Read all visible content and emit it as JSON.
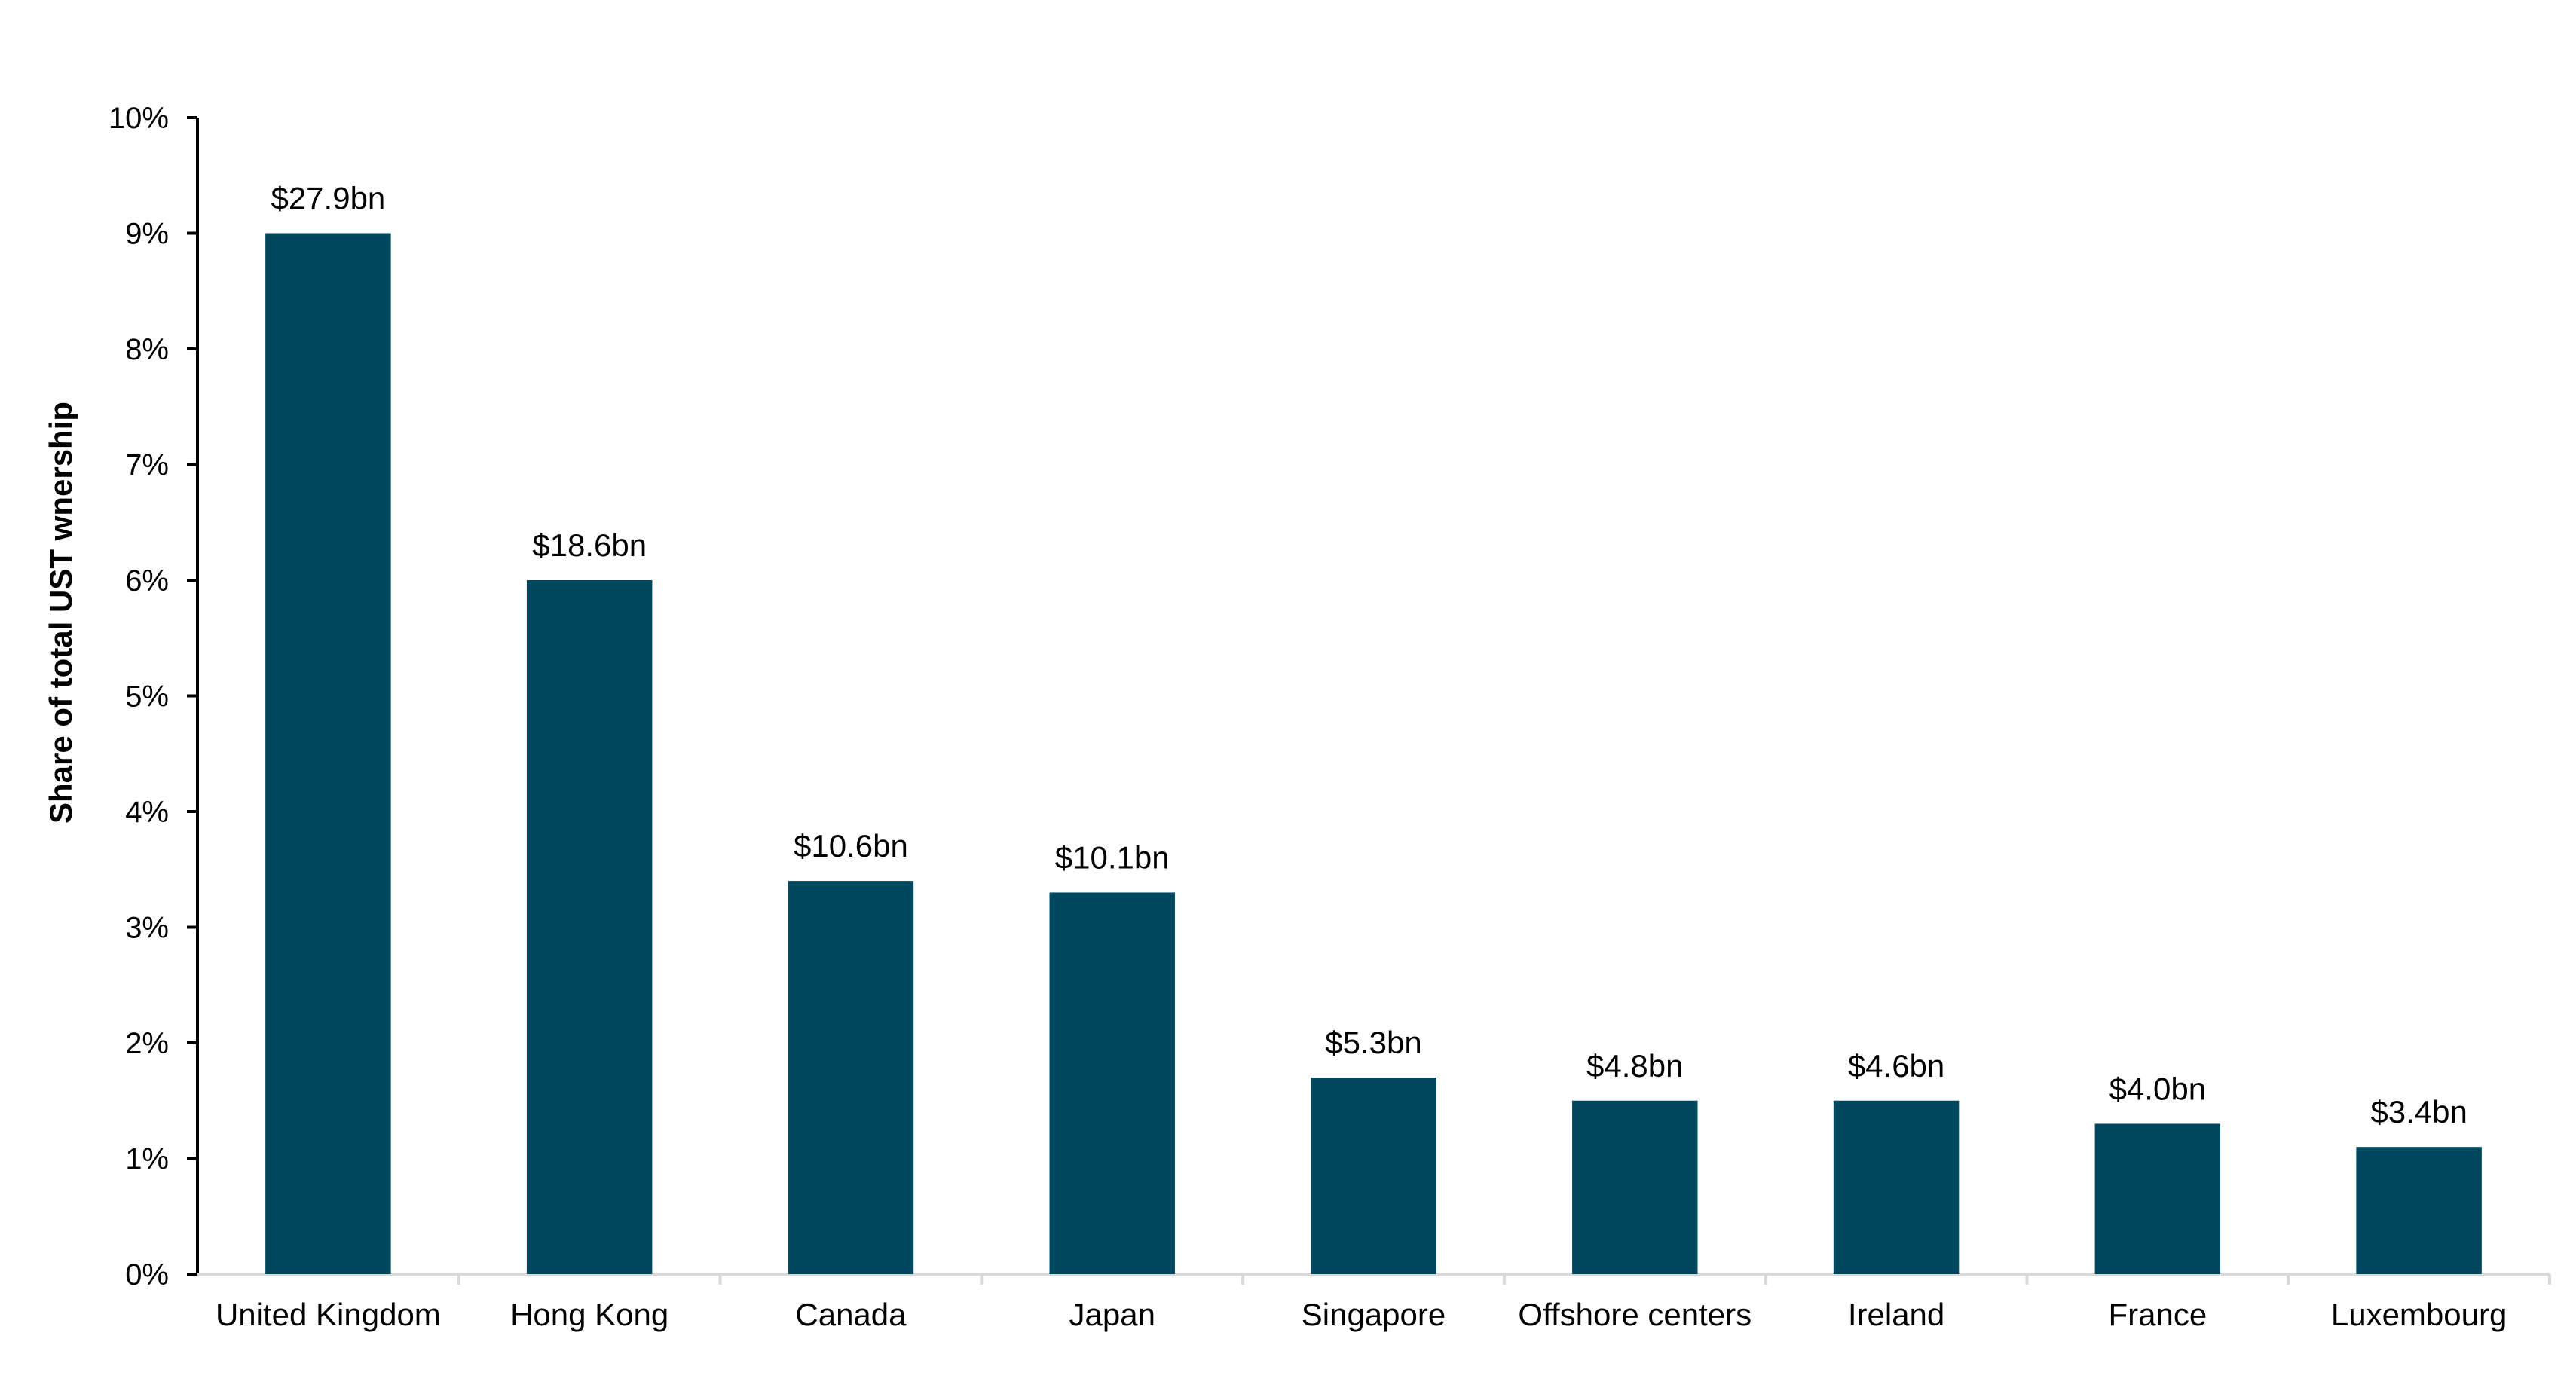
{
  "chart_data": {
    "type": "bar",
    "title": "",
    "xlabel": "",
    "ylabel": "Share of total UST wnership",
    "ylim": [
      0,
      10
    ],
    "y_ticks": [
      "0%",
      "1%",
      "2%",
      "3%",
      "4%",
      "5%",
      "6%",
      "7%",
      "8%",
      "9%",
      "10%"
    ],
    "categories": [
      "United Kingdom",
      "Hong Kong",
      "Canada",
      "Japan",
      "Singapore",
      "Offshore centers",
      "Ireland",
      "France",
      "Luxembourg"
    ],
    "values": [
      9.0,
      6.0,
      3.4,
      3.3,
      1.7,
      1.5,
      1.5,
      1.3,
      1.1
    ],
    "data_labels": [
      "$27.9bn",
      "$18.6bn",
      "$10.6bn",
      "$10.1bn",
      "$5.3bn",
      "$4.8bn",
      "$4.6bn",
      "$4.0bn",
      "$3.4bn"
    ],
    "grid": false,
    "legend": "none",
    "colors": {
      "bar": "#00485e",
      "axis": "#000000",
      "baseline": "#d9d9d9"
    }
  }
}
